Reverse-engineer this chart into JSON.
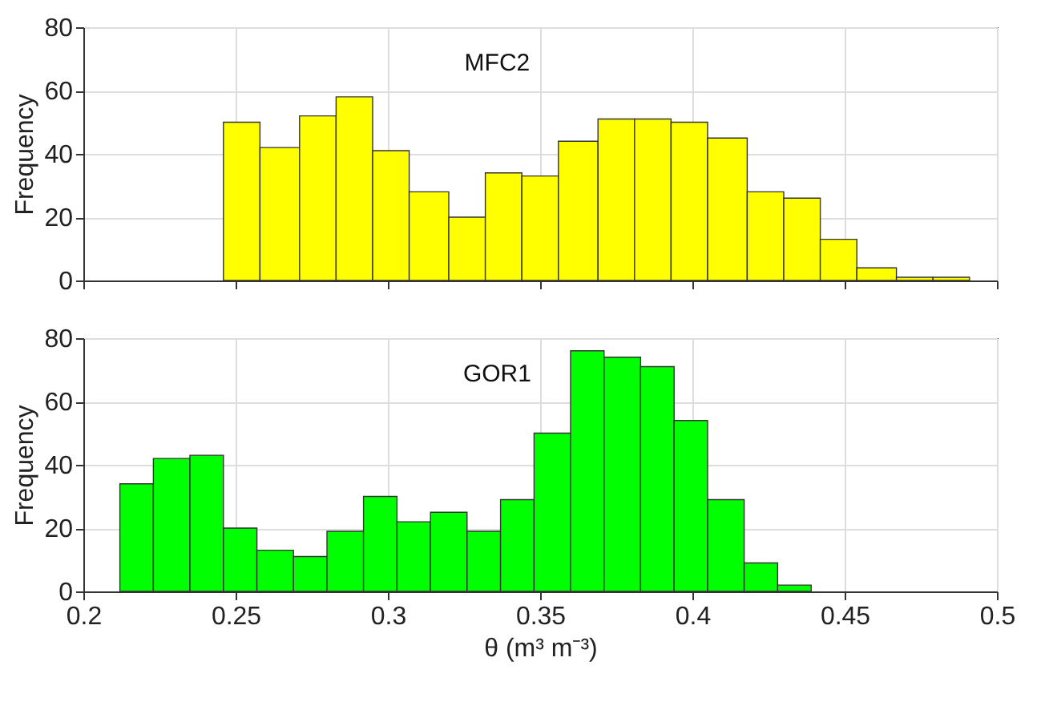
{
  "chart_data": [
    {
      "type": "histogram",
      "annotations": [
        "MFC2"
      ],
      "ylabel": "Frequency",
      "bins": [
        0.246,
        0.258,
        0.271,
        0.283,
        0.295,
        0.307,
        0.32,
        0.332,
        0.344,
        0.356,
        0.369,
        0.381,
        0.393,
        0.405,
        0.418,
        0.43,
        0.442,
        0.454,
        0.467,
        0.479,
        0.491
      ],
      "values": [
        50,
        42,
        52,
        58,
        41,
        28,
        20,
        34,
        33,
        44,
        51,
        51,
        50,
        45,
        28,
        26,
        13,
        4,
        1,
        1
      ],
      "color": "#ffff00",
      "xlim": [
        0.2,
        0.5
      ],
      "xticks": [
        0.2,
        0.25,
        0.3,
        0.35,
        0.4,
        0.45,
        0.5
      ],
      "ylim": [
        0,
        80
      ],
      "yticks": [
        0,
        20,
        40,
        60,
        80
      ],
      "grid": true,
      "tick_labels": "y"
    },
    {
      "type": "histogram",
      "annotations": [
        "GOR1"
      ],
      "ylabel": "Frequency",
      "xlabel": "θ (m³ m⁻³)",
      "bins": [
        0.212,
        0.223,
        0.235,
        0.246,
        0.257,
        0.269,
        0.28,
        0.292,
        0.303,
        0.314,
        0.326,
        0.337,
        0.348,
        0.36,
        0.371,
        0.383,
        0.394,
        0.405,
        0.417,
        0.428,
        0.439
      ],
      "values": [
        34,
        42,
        43,
        20,
        13,
        11,
        19,
        30,
        22,
        25,
        19,
        29,
        50,
        76,
        74,
        71,
        54,
        29,
        9,
        2
      ],
      "color": "#00ff00",
      "xlim": [
        0.2,
        0.5
      ],
      "xticks": [
        0.2,
        0.25,
        0.3,
        0.35,
        0.4,
        0.45,
        0.5
      ],
      "ylim": [
        0,
        80
      ],
      "yticks": [
        0,
        20,
        40,
        60,
        80
      ],
      "grid": true
    }
  ]
}
